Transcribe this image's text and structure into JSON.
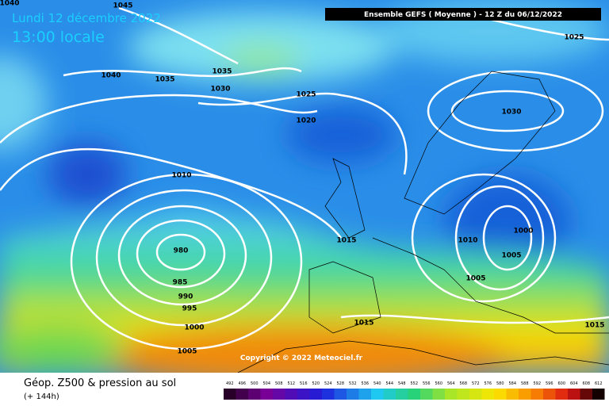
{
  "header": {
    "date": "Lundi 12 décembre 2022",
    "time": "13:00 locale",
    "run": "Ensemble GEFS  ( Moyenne )  -  12 Z du 06/12/2022"
  },
  "isobars": [
    "1040",
    "1045",
    "1040",
    "1035",
    "1035",
    "1030",
    "1025",
    "1020",
    "1025",
    "1030",
    "1010",
    "980",
    "985",
    "990",
    "995",
    "1000",
    "1005",
    "1015",
    "1010",
    "1000",
    "1005",
    "1005",
    "1015",
    "1015"
  ],
  "copyright": "Copyright © 2022 Meteociel.fr",
  "footer": {
    "title": "Géop. Z500 & pression au sol",
    "lead": "(+ 144h)"
  },
  "scale": [
    "492",
    "496",
    "500",
    "504",
    "508",
    "512",
    "516",
    "520",
    "524",
    "528",
    "532",
    "536",
    "540",
    "544",
    "548",
    "552",
    "556",
    "560",
    "564",
    "568",
    "572",
    "576",
    "580",
    "584",
    "588",
    "592",
    "596",
    "600",
    "604",
    "608",
    "612"
  ]
}
